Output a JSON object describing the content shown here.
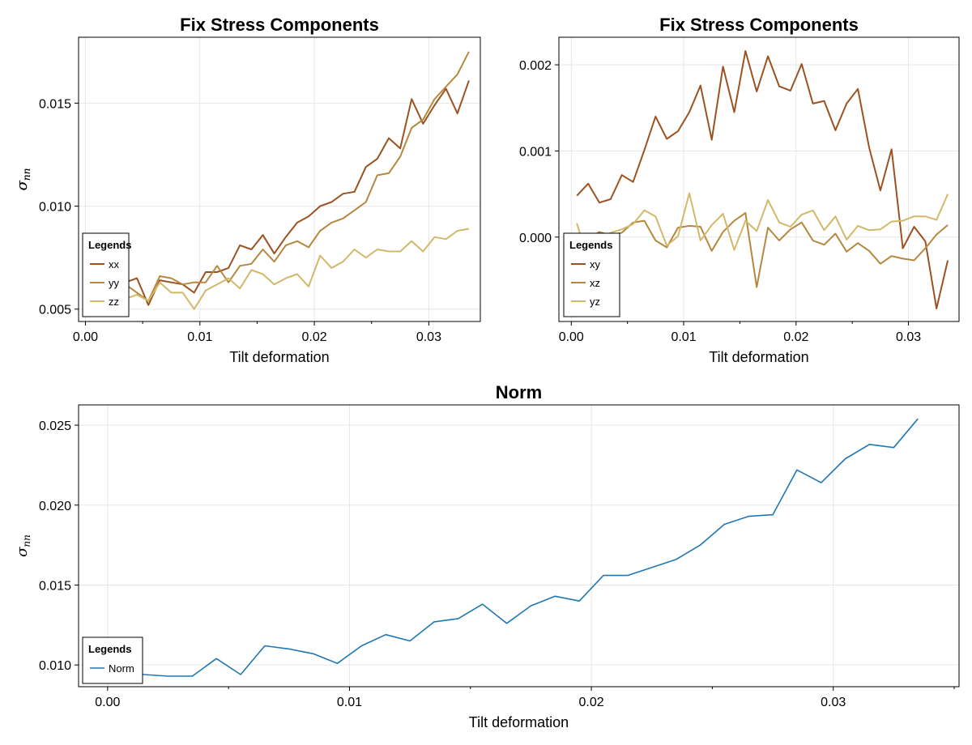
{
  "chart_data": [
    {
      "type": "line",
      "title": "Fix Stress Components",
      "xlabel": "Tilt deformation",
      "ylabel": "σ",
      "ylabel_sub": "nn",
      "xlim": [
        -0.0006,
        0.0345
      ],
      "ylim": [
        0.0044,
        0.0182
      ],
      "xticks": [
        0.0,
        0.01,
        0.02,
        0.03
      ],
      "xtick_labels": [
        "0.00",
        "0.01",
        "0.02",
        "0.03"
      ],
      "yticks": [
        0.005,
        0.01,
        0.015
      ],
      "ytick_labels": [
        "0.005",
        "0.010",
        "0.015"
      ],
      "legend_title": "Legends",
      "legend_position": "bottom-left",
      "grid": true,
      "x": [
        0.0005,
        0.0015,
        0.0025,
        0.0035,
        0.0045,
        0.0055,
        0.0065,
        0.0075,
        0.0085,
        0.0095,
        0.0105,
        0.0115,
        0.0125,
        0.0135,
        0.0145,
        0.0155,
        0.0165,
        0.0175,
        0.0185,
        0.0195,
        0.0205,
        0.0215,
        0.0225,
        0.0235,
        0.0245,
        0.0255,
        0.0265,
        0.0275,
        0.0285,
        0.0295,
        0.0305,
        0.0315,
        0.0325,
        0.0335
      ],
      "series": [
        {
          "name": "xx",
          "color": "#9c5220",
          "values": [
            0.0062,
            0.0057,
            0.0061,
            0.0063,
            0.0065,
            0.0052,
            0.0064,
            0.0063,
            0.0062,
            0.0058,
            0.0068,
            0.0068,
            0.007,
            0.0081,
            0.0079,
            0.0086,
            0.0077,
            0.0085,
            0.0092,
            0.0095,
            0.01,
            0.0102,
            0.0106,
            0.0107,
            0.0119,
            0.0123,
            0.0133,
            0.0128,
            0.0152,
            0.014,
            0.0149,
            0.0157,
            0.0145,
            0.0161
          ]
        },
        {
          "name": "yy",
          "color": "#b5883e",
          "values": [
            0.0062,
            0.0058,
            0.006,
            0.0062,
            0.0058,
            0.0054,
            0.0066,
            0.0065,
            0.0062,
            0.0063,
            0.0063,
            0.0071,
            0.0063,
            0.0071,
            0.0072,
            0.0079,
            0.0073,
            0.0081,
            0.0083,
            0.008,
            0.0088,
            0.0092,
            0.0094,
            0.0098,
            0.0102,
            0.0115,
            0.0116,
            0.0124,
            0.0138,
            0.0142,
            0.0152,
            0.0158,
            0.0164,
            0.0175
          ]
        },
        {
          "name": "zz",
          "color": "#d1b86a",
          "values": [
            0.0057,
            0.0054,
            0.0056,
            0.0055,
            0.0057,
            0.0054,
            0.0063,
            0.0058,
            0.0058,
            0.005,
            0.0059,
            0.0062,
            0.0065,
            0.006,
            0.0069,
            0.0067,
            0.0062,
            0.0065,
            0.0067,
            0.0061,
            0.0076,
            0.007,
            0.0073,
            0.0079,
            0.0075,
            0.0079,
            0.0078,
            0.0078,
            0.0083,
            0.0078,
            0.0085,
            0.0084,
            0.0088,
            0.0089
          ]
        }
      ]
    },
    {
      "type": "line",
      "title": "Fix Stress Components",
      "xlabel": "Tilt deformation",
      "ylabel": "σ",
      "ylabel_sub": "nn",
      "xlim": [
        -0.0011,
        0.0345
      ],
      "ylim": [
        -0.00098,
        0.00232
      ],
      "xticks": [
        0.0,
        0.01,
        0.02,
        0.03
      ],
      "xtick_labels": [
        "0.00",
        "0.01",
        "0.02",
        "0.03"
      ],
      "yticks": [
        0.0,
        0.001,
        0.002
      ],
      "ytick_labels": [
        "0.000",
        "0.001",
        "0.002"
      ],
      "legend_title": "Legends",
      "legend_position": "bottom-left",
      "grid": true,
      "x": [
        0.0005,
        0.0015,
        0.0025,
        0.0035,
        0.0045,
        0.0055,
        0.0065,
        0.0075,
        0.0085,
        0.0095,
        0.0105,
        0.0115,
        0.0125,
        0.0135,
        0.0145,
        0.0155,
        0.0165,
        0.0175,
        0.0185,
        0.0195,
        0.0205,
        0.0215,
        0.0225,
        0.0235,
        0.0245,
        0.0255,
        0.0265,
        0.0275,
        0.0285,
        0.0295,
        0.0305,
        0.0315,
        0.0325,
        0.0335
      ],
      "series": [
        {
          "name": "xy",
          "color": "#9c5220",
          "values": [
            0.00048,
            0.00062,
            0.0004,
            0.00044,
            0.00072,
            0.00064,
            0.00101,
            0.0014,
            0.00114,
            0.00123,
            0.00145,
            0.00176,
            0.00113,
            0.00198,
            0.00145,
            0.00216,
            0.00169,
            0.0021,
            0.00175,
            0.0017,
            0.00201,
            0.00155,
            0.00158,
            0.00124,
            0.00155,
            0.00172,
            0.00104,
            0.00054,
            0.00102,
            -0.00013,
            0.00012,
            -5e-05,
            -0.00083,
            -0.00027
          ]
        },
        {
          "name": "xz",
          "color": "#b5883e",
          "values": [
            -0.0001,
            -2e-05,
            6e-05,
            2e-05,
            5e-05,
            0.00017,
            0.00019,
            -4e-05,
            -0.00012,
            0.00011,
            0.00013,
            0.00012,
            -0.00016,
            6e-05,
            0.00019,
            0.00028,
            -0.00058,
            0.00011,
            -4e-05,
            9e-05,
            0.00017,
            -4e-05,
            -9e-05,
            4e-05,
            -0.00017,
            -7e-05,
            -0.00016,
            -0.00031,
            -0.00022,
            -0.00025,
            -0.00027,
            -0.00013,
            3e-05,
            0.00014
          ]
        },
        {
          "name": "yz",
          "color": "#d1b86a",
          "values": [
            0.00016,
            -0.00028,
            -5e-05,
            5e-05,
            9e-05,
            0.00015,
            0.00031,
            0.00024,
            -0.0001,
            1e-05,
            0.00051,
            -4e-05,
            0.00014,
            0.00027,
            -0.00015,
            0.00019,
            7e-05,
            0.00043,
            0.00017,
            0.00012,
            0.00026,
            0.00031,
            8e-05,
            0.00024,
            -3e-05,
            0.00013,
            8e-05,
            9e-05,
            0.00018,
            0.00019,
            0.00024,
            0.00024,
            0.0002,
            0.0005
          ]
        }
      ]
    },
    {
      "type": "line",
      "title": "Norm",
      "xlabel": "Tilt deformation",
      "ylabel": "σ",
      "ylabel_sub": "nn",
      "xlim": [
        -0.0012,
        0.0352
      ],
      "ylim": [
        0.00864,
        0.02627
      ],
      "xticks": [
        0.0,
        0.01,
        0.02,
        0.03
      ],
      "xtick_labels": [
        "0.00",
        "0.01",
        "0.02",
        "0.03"
      ],
      "yticks": [
        0.01,
        0.015,
        0.02,
        0.025
      ],
      "ytick_labels": [
        "0.010",
        "0.015",
        "0.020",
        "0.025"
      ],
      "legend_title": "Legends",
      "legend_position": "bottom-left",
      "grid": true,
      "x": [
        0.0005,
        0.0015,
        0.0025,
        0.0035,
        0.0045,
        0.0055,
        0.0065,
        0.0075,
        0.0085,
        0.0095,
        0.0105,
        0.0115,
        0.0125,
        0.0135,
        0.0145,
        0.0155,
        0.0165,
        0.0175,
        0.0185,
        0.0195,
        0.0205,
        0.0215,
        0.0225,
        0.0235,
        0.0245,
        0.0255,
        0.0265,
        0.0275,
        0.0285,
        0.0295,
        0.0305,
        0.0315,
        0.0325,
        0.0335
      ],
      "series": [
        {
          "name": "Norm",
          "color": "#1f77b4",
          "values": [
            0.0097,
            0.0094,
            0.0093,
            0.0093,
            0.0104,
            0.0094,
            0.0112,
            0.011,
            0.0107,
            0.0101,
            0.0112,
            0.0119,
            0.0115,
            0.0127,
            0.0129,
            0.0138,
            0.0126,
            0.0137,
            0.0143,
            0.014,
            0.0156,
            0.0156,
            0.0161,
            0.0166,
            0.0175,
            0.0188,
            0.0193,
            0.0194,
            0.0222,
            0.0214,
            0.0229,
            0.0238,
            0.0236,
            0.0254
          ]
        }
      ]
    }
  ]
}
